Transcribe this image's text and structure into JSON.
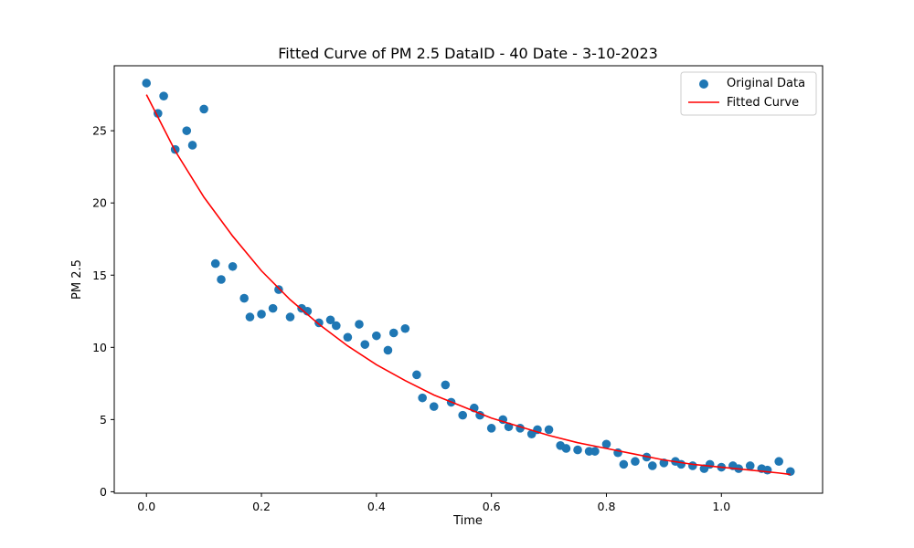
{
  "chart_data": {
    "type": "scatter",
    "title": "Fitted Curve of PM 2.5 DataID - 40 Date - 3-10-2023",
    "xlabel": "Time",
    "ylabel": "PM 2.5",
    "xlim": [
      -0.056,
      1.176
    ],
    "ylim": [
      -0.1,
      29.5
    ],
    "xticks": [
      0.0,
      0.2,
      0.4,
      0.6,
      0.8,
      1.0
    ],
    "xtick_labels": [
      "0.0",
      "0.2",
      "0.4",
      "0.6",
      "0.8",
      "1.0"
    ],
    "yticks": [
      0,
      5,
      10,
      15,
      20,
      25
    ],
    "ytick_labels": [
      "0",
      "5",
      "10",
      "15",
      "20",
      "25"
    ],
    "grid": false,
    "legend_position": "top-right",
    "series": [
      {
        "name": "Original Data",
        "kind": "scatter",
        "color": "#1f77b4",
        "points": [
          [
            0.0,
            28.3
          ],
          [
            0.02,
            26.2
          ],
          [
            0.03,
            27.4
          ],
          [
            0.05,
            23.7
          ],
          [
            0.07,
            25.0
          ],
          [
            0.08,
            24.0
          ],
          [
            0.1,
            26.5
          ],
          [
            0.12,
            15.8
          ],
          [
            0.13,
            14.7
          ],
          [
            0.15,
            15.6
          ],
          [
            0.17,
            13.4
          ],
          [
            0.18,
            12.1
          ],
          [
            0.2,
            12.3
          ],
          [
            0.22,
            12.7
          ],
          [
            0.23,
            14.0
          ],
          [
            0.25,
            12.1
          ],
          [
            0.27,
            12.7
          ],
          [
            0.28,
            12.5
          ],
          [
            0.3,
            11.7
          ],
          [
            0.32,
            11.9
          ],
          [
            0.33,
            11.5
          ],
          [
            0.35,
            10.7
          ],
          [
            0.37,
            11.6
          ],
          [
            0.38,
            10.2
          ],
          [
            0.4,
            10.8
          ],
          [
            0.42,
            9.8
          ],
          [
            0.43,
            11.0
          ],
          [
            0.45,
            11.3
          ],
          [
            0.47,
            8.1
          ],
          [
            0.48,
            6.5
          ],
          [
            0.5,
            5.9
          ],
          [
            0.52,
            7.4
          ],
          [
            0.53,
            6.2
          ],
          [
            0.55,
            5.3
          ],
          [
            0.57,
            5.8
          ],
          [
            0.58,
            5.3
          ],
          [
            0.6,
            4.4
          ],
          [
            0.62,
            5.0
          ],
          [
            0.63,
            4.5
          ],
          [
            0.65,
            4.4
          ],
          [
            0.67,
            4.0
          ],
          [
            0.68,
            4.3
          ],
          [
            0.7,
            4.3
          ],
          [
            0.72,
            3.2
          ],
          [
            0.73,
            3.0
          ],
          [
            0.75,
            2.9
          ],
          [
            0.77,
            2.8
          ],
          [
            0.78,
            2.8
          ],
          [
            0.8,
            3.3
          ],
          [
            0.82,
            2.7
          ],
          [
            0.83,
            1.9
          ],
          [
            0.85,
            2.1
          ],
          [
            0.87,
            2.4
          ],
          [
            0.88,
            1.8
          ],
          [
            0.9,
            2.0
          ],
          [
            0.92,
            2.1
          ],
          [
            0.93,
            1.9
          ],
          [
            0.95,
            1.8
          ],
          [
            0.97,
            1.6
          ],
          [
            0.98,
            1.9
          ],
          [
            1.0,
            1.7
          ],
          [
            1.02,
            1.8
          ],
          [
            1.03,
            1.6
          ],
          [
            1.05,
            1.8
          ],
          [
            1.07,
            1.6
          ],
          [
            1.08,
            1.5
          ],
          [
            1.1,
            2.1
          ],
          [
            1.12,
            1.4
          ]
        ]
      },
      {
        "name": "Fitted Curve",
        "kind": "line",
        "color": "#ff0000",
        "points": [
          [
            0.0,
            27.5
          ],
          [
            0.05,
            23.6
          ],
          [
            0.1,
            20.4
          ],
          [
            0.15,
            17.7
          ],
          [
            0.2,
            15.3
          ],
          [
            0.25,
            13.3
          ],
          [
            0.3,
            11.6
          ],
          [
            0.35,
            10.1
          ],
          [
            0.4,
            8.8
          ],
          [
            0.45,
            7.7
          ],
          [
            0.5,
            6.7
          ],
          [
            0.55,
            5.9
          ],
          [
            0.6,
            5.1
          ],
          [
            0.65,
            4.5
          ],
          [
            0.7,
            3.9
          ],
          [
            0.75,
            3.4
          ],
          [
            0.8,
            3.0
          ],
          [
            0.85,
            2.6
          ],
          [
            0.9,
            2.2
          ],
          [
            0.95,
            1.9
          ],
          [
            1.0,
            1.7
          ],
          [
            1.05,
            1.5
          ],
          [
            1.1,
            1.3
          ],
          [
            1.12,
            1.2
          ]
        ]
      }
    ]
  }
}
